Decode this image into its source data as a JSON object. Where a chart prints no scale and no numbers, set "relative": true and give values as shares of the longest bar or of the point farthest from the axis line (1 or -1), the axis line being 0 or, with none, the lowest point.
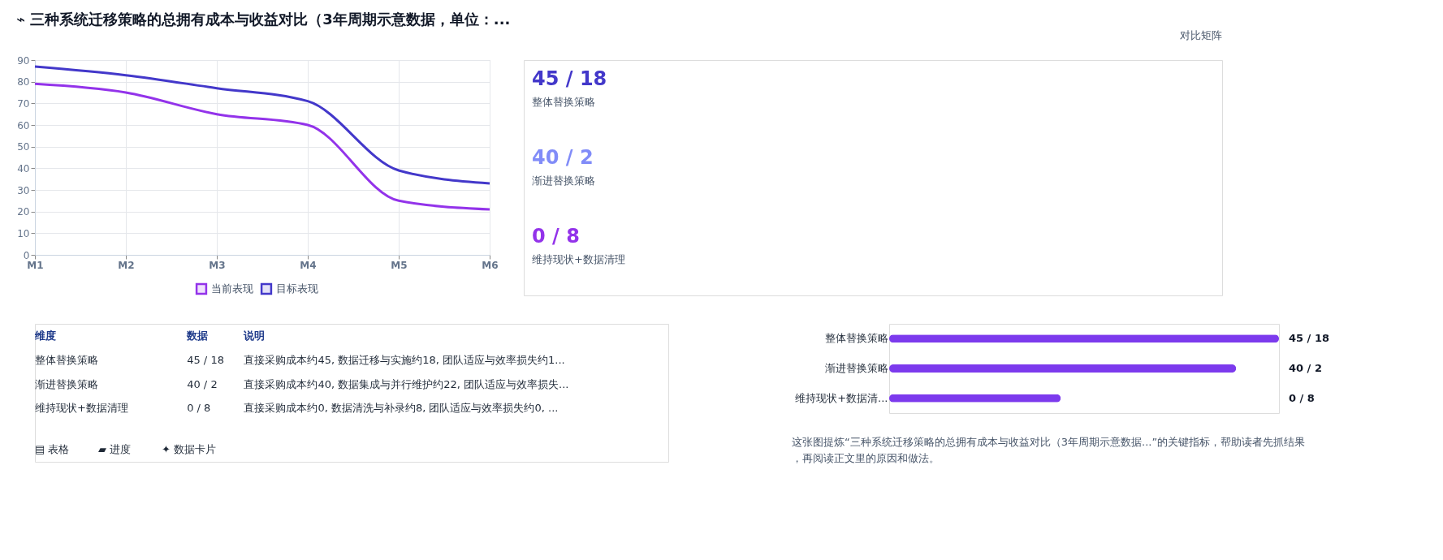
{
  "chart_data": [
    {
      "type": "line",
      "title": "⌁ 三种系统迁移策略的总拥有成本与收益对比（3年周期示意数据，单位：...",
      "annotations": [
        "对比矩阵"
      ],
      "categories": [
        "M1",
        "M2",
        "M3",
        "M4",
        "M5",
        "M6"
      ],
      "series": [
        {
          "name": "当前表现",
          "color": "#9333ea",
          "values": [
            79,
            75,
            65,
            60,
            25,
            21
          ]
        },
        {
          "name": "目标表现",
          "color": "#4338ca",
          "values": [
            87,
            83,
            77,
            71,
            39,
            33
          ]
        }
      ],
      "ylim": [
        0,
        90
      ],
      "yticks": [
        0,
        10,
        20,
        30,
        40,
        50,
        60,
        70,
        80,
        90
      ],
      "grid": true,
      "legend": "bottom",
      "marker": "none",
      "line_style": "solid"
    },
    {
      "type": "other",
      "categories": [
        "整体替换策略",
        "渐进替换策略",
        "维持现状+数据清理"
      ],
      "value_labels": [
        "45 / 18",
        "40 / 2",
        "0 / 8"
      ],
      "colors": [
        "#4338ca",
        "#818cf8",
        "#9333ea"
      ]
    },
    {
      "type": "other",
      "categories": [
        "维度",
        "数据",
        "说明"
      ],
      "cell_labels": [
        [
          "整体替换策略",
          "45 / 18",
          "直接采购成本约45, 数据迁移与实施约18, 团队适应与效率损失约1..."
        ],
        [
          "渐进替换策略",
          "40 / 2",
          "直接采购成本约40, 数据集成与并行维护约22, 团队适应与效率损失..."
        ],
        [
          "维持现状+数据清理",
          "0 / 8",
          "直接采购成本约0, 数据清洗与补录约8, 团队适应与效率损失约0, ..."
        ]
      ],
      "annotations": [
        "▤ 表格",
        "▰ 进度",
        "✦ 数据卡片"
      ]
    },
    {
      "type": "bar",
      "orientation": "horizontal",
      "relative": true,
      "categories": [
        "整体替换策略",
        "渐进替换策略",
        "维持现状+数据清..."
      ],
      "values": [
        1,
        0.89,
        0.44
      ],
      "color": "#7c3aed",
      "annotations": [
        "45 / 18",
        "40 / 2",
        "0 / 8",
        "这张图提炼“三种系统迁移策略的总拥有成本与收益对比（3年周期示意数据...”的关键指标，帮助读者先抓结果，再阅读正文里的原因和做法。"
      ]
    }
  ]
}
